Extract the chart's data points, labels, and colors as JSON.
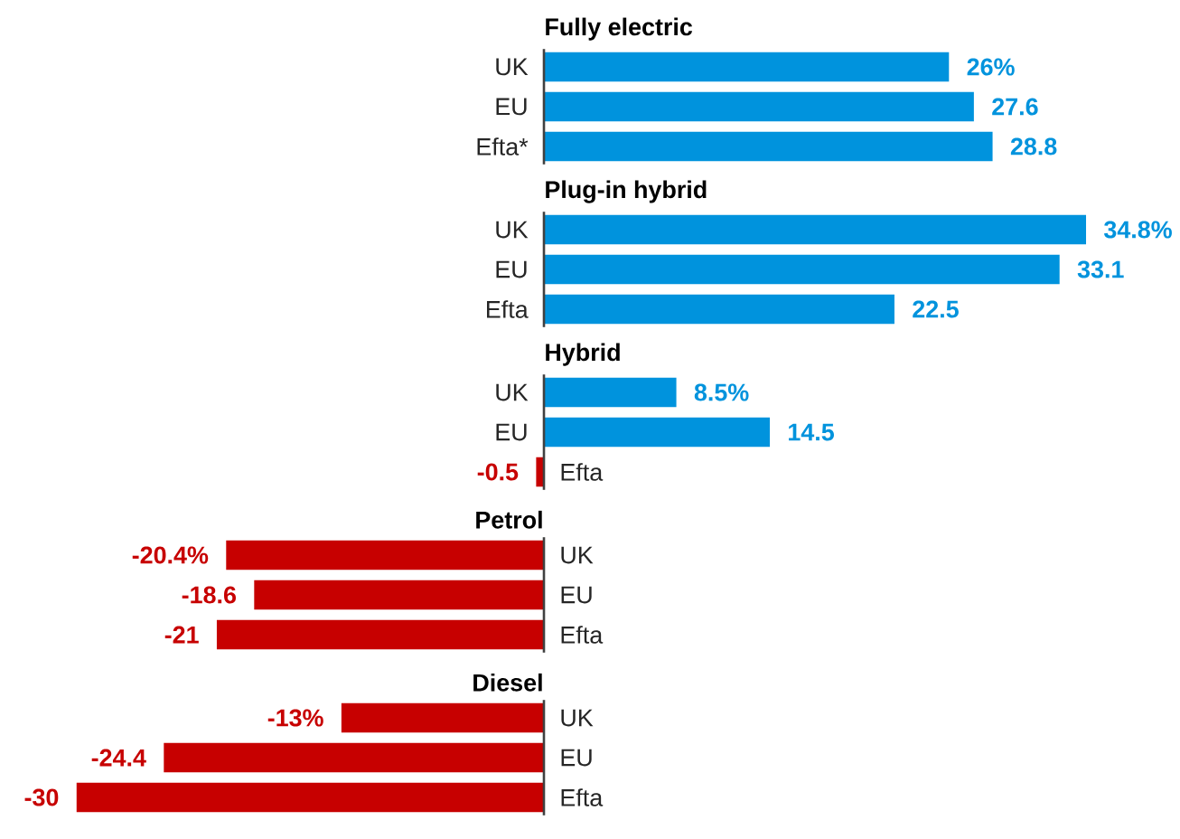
{
  "chart_data": [
    {
      "type": "bar",
      "orientation": "horizontal",
      "title": "Fully electric",
      "categories": [
        "UK",
        "EU",
        "Efta*"
      ],
      "values": [
        26,
        27.6,
        28.8
      ],
      "colors": [
        "#0093dd",
        "#0093dd",
        "#0093dd"
      ],
      "value_labels": [
        "26%",
        "27.6",
        "28.8"
      ]
    },
    {
      "type": "bar",
      "orientation": "horizontal",
      "title": "Plug-in hybrid",
      "categories": [
        "UK",
        "EU",
        "Efta"
      ],
      "values": [
        34.8,
        33.1,
        22.5
      ],
      "colors": [
        "#0093dd",
        "#0093dd",
        "#0093dd"
      ],
      "value_labels": [
        "34.8%",
        "33.1",
        "22.5"
      ]
    },
    {
      "type": "bar",
      "orientation": "horizontal",
      "title": "Hybrid",
      "categories": [
        "UK",
        "EU",
        "Efta"
      ],
      "values": [
        8.5,
        14.5,
        -0.5
      ],
      "colors": [
        "#0093dd",
        "#0093dd",
        "#c70000"
      ],
      "value_labels": [
        "8.5%",
        "14.5",
        "-0.5"
      ]
    },
    {
      "type": "bar",
      "orientation": "horizontal",
      "title": "Petrol",
      "categories": [
        "UK",
        "EU",
        "Efta"
      ],
      "values": [
        -20.4,
        -18.6,
        -21
      ],
      "colors": [
        "#c70000",
        "#c70000",
        "#c70000"
      ],
      "value_labels": [
        "-20.4%",
        "-18.6",
        "-21"
      ]
    },
    {
      "type": "bar",
      "orientation": "horizontal",
      "title": "Diesel",
      "categories": [
        "UK",
        "EU",
        "Efta"
      ],
      "values": [
        -13,
        -24.4,
        -30
      ],
      "colors": [
        "#c70000",
        "#c70000",
        "#c70000"
      ],
      "value_labels": [
        "-13%",
        "-24.4",
        "-30"
      ]
    }
  ]
}
